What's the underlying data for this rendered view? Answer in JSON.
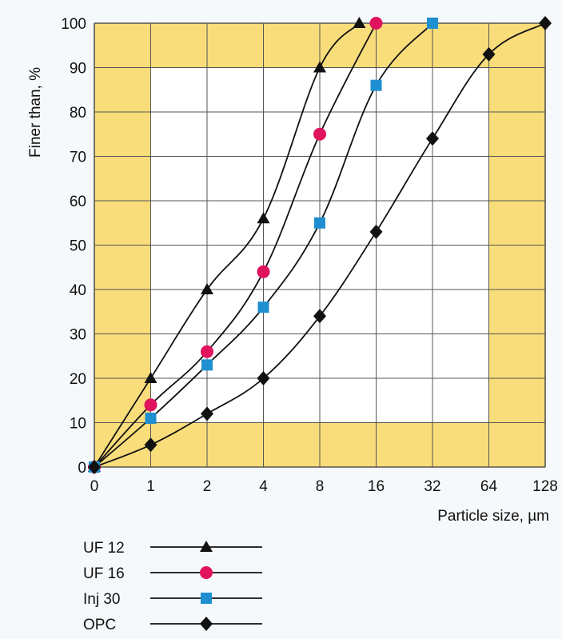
{
  "chart_data": {
    "type": "line",
    "xlabel": "Particle size, µm",
    "ylabel": "Finer than, %",
    "x_ticks": [
      "0",
      "1",
      "2",
      "4",
      "8",
      "16",
      "32",
      "64",
      "128"
    ],
    "y_ticks": [
      "0",
      "10",
      "20",
      "30",
      "40",
      "50",
      "60",
      "70",
      "80",
      "90",
      "100"
    ],
    "ylim": [
      0,
      100
    ],
    "x_scale": "log2 (0 shown at origin)",
    "grid": true,
    "legend_position": "below",
    "colors": {
      "background_band": "#f8dd7a",
      "plot_inner": "#ffffff",
      "grid": "#555555",
      "line": "#111111",
      "uf16_marker": "#e0145e",
      "inj30_marker": "#1e8fd0",
      "black_marker": "#111111"
    },
    "series": [
      {
        "name": "UF 12",
        "marker": "triangle",
        "x": [
          0,
          1,
          2,
          4,
          8,
          13
        ],
        "y": [
          0,
          20,
          40,
          56,
          90,
          100
        ]
      },
      {
        "name": "UF 16",
        "marker": "circle",
        "x": [
          0,
          1,
          2,
          4,
          8,
          16
        ],
        "y": [
          0,
          14,
          26,
          44,
          75,
          100
        ]
      },
      {
        "name": "Inj 30",
        "marker": "square",
        "x": [
          0,
          1,
          2,
          4,
          8,
          16,
          32
        ],
        "y": [
          0,
          11,
          23,
          36,
          55,
          86,
          100
        ]
      },
      {
        "name": "OPC",
        "marker": "diamond",
        "x": [
          0,
          1,
          2,
          4,
          8,
          16,
          32,
          64,
          128
        ],
        "y": [
          0,
          5,
          12,
          20,
          34,
          53,
          74,
          93,
          100
        ]
      }
    ]
  }
}
